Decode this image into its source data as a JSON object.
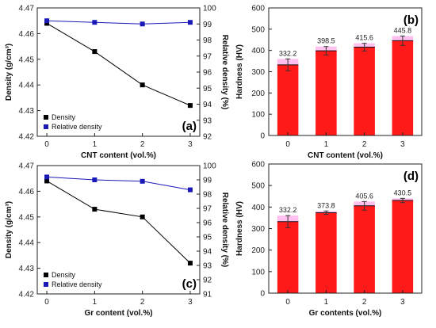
{
  "colors": {
    "density": "#000000",
    "relative_density": "#1a1ab8",
    "bar": "#ff1a1a",
    "bar_error_band": "#ffc0f0",
    "axis": "#222222"
  },
  "chart_data": [
    {
      "panel": "(a)",
      "type": "line",
      "xlabel": "CNT content (vol.%)",
      "ylabel": "Density (g/cm³)",
      "y2label": "Relative density (%)",
      "x": [
        0,
        1,
        2,
        3
      ],
      "xticks": [
        "0",
        "1",
        "2",
        "3"
      ],
      "xlim": [
        -0.2,
        3.2
      ],
      "ylim": [
        4.42,
        4.47
      ],
      "yticks": [
        "4.42",
        "4.43",
        "4.44",
        "4.45",
        "4.46",
        "4.47"
      ],
      "y2lim": [
        92,
        100
      ],
      "y2ticks": [
        "92",
        "93",
        "94",
        "95",
        "96",
        "97",
        "98",
        "99",
        "100"
      ],
      "legend_position": "bottom-left",
      "series": [
        {
          "name": "Density",
          "axis": "left",
          "marker": "square",
          "values": [
            4.464,
            4.453,
            4.44,
            4.432
          ]
        },
        {
          "name": "Relative density",
          "axis": "right",
          "marker": "square",
          "values": [
            99.2,
            99.1,
            99.0,
            99.1
          ]
        }
      ]
    },
    {
      "panel": "(b)",
      "type": "bar",
      "xlabel": "CNT content (vol.%)",
      "ylabel": "Hardness (HV)",
      "categories": [
        "0",
        "1",
        "2",
        "3"
      ],
      "values": [
        332.2,
        398.5,
        415.6,
        445.8
      ],
      "data_labels": [
        "332.2",
        "398.5",
        "415.6",
        "445.8"
      ],
      "errors": [
        28,
        20,
        18,
        22
      ],
      "ylim": [
        0,
        600
      ],
      "yticks": [
        "0",
        "100",
        "200",
        "300",
        "400",
        "500",
        "600"
      ],
      "xlim": [
        -0.5,
        3.5
      ]
    },
    {
      "panel": "(c)",
      "type": "line",
      "xlabel": "Gr content (vol.%)",
      "ylabel": "Density (g/cm³)",
      "y2label": "Relative density (%)",
      "x": [
        0,
        1,
        2,
        3
      ],
      "xticks": [
        "0",
        "1",
        "2",
        "3"
      ],
      "xlim": [
        -0.2,
        3.2
      ],
      "ylim": [
        4.42,
        4.47
      ],
      "yticks": [
        "4.42",
        "4.43",
        "4.44",
        "4.45",
        "4.46",
        "4.47"
      ],
      "y2lim": [
        91,
        100
      ],
      "y2ticks": [
        "91",
        "92",
        "93",
        "94",
        "95",
        "96",
        "97",
        "98",
        "99",
        "100"
      ],
      "legend_position": "bottom-left",
      "series": [
        {
          "name": "Density",
          "axis": "left",
          "marker": "square",
          "values": [
            4.464,
            4.453,
            4.45,
            4.432
          ]
        },
        {
          "name": "Relative density",
          "axis": "right",
          "marker": "square",
          "values": [
            99.2,
            99.0,
            98.9,
            98.3
          ]
        }
      ]
    },
    {
      "panel": "(d)",
      "type": "bar",
      "xlabel": "Gr contents (vol.%)",
      "ylabel": "Hardness (HV)",
      "categories": [
        "0",
        "1",
        "2",
        "3"
      ],
      "values": [
        332.2,
        373.8,
        405.6,
        430.5
      ],
      "data_labels": [
        "332.2",
        "373.8",
        "405.6",
        "430.5"
      ],
      "errors": [
        28,
        8,
        20,
        10
      ],
      "ylim": [
        0,
        600
      ],
      "yticks": [
        "0",
        "100",
        "200",
        "300",
        "400",
        "500",
        "600"
      ],
      "xlim": [
        -0.5,
        3.5
      ]
    }
  ]
}
